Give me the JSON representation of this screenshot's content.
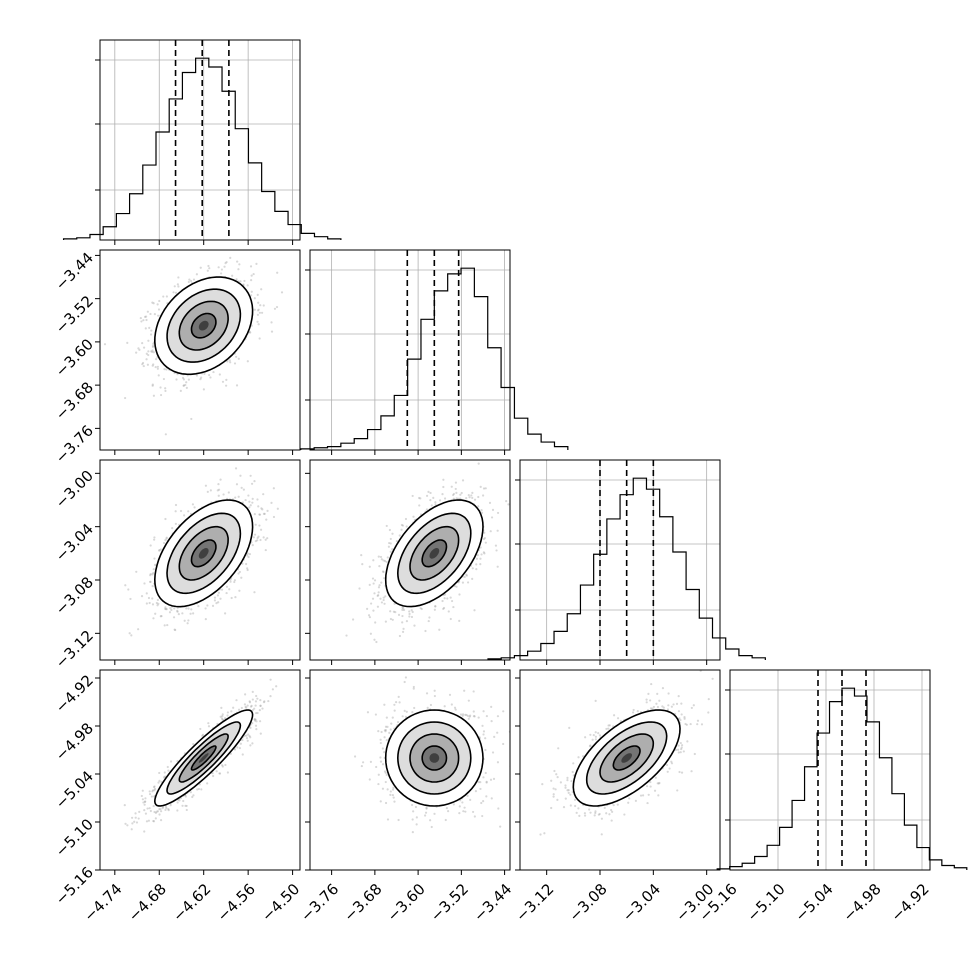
{
  "chart_data": {
    "type": "corner",
    "grid": true,
    "params": [
      {
        "range": [
          -4.76,
          -4.49
        ],
        "ticks": [
          "−4.74",
          "−4.68",
          "−4.62",
          "−4.56",
          "−4.50"
        ],
        "tick_values": [
          -4.74,
          -4.68,
          -4.62,
          "-4.56",
          -4.5
        ],
        "quantiles": [
          -4.658,
          -4.622,
          -4.586
        ]
      },
      {
        "range": [
          -3.8,
          -3.43
        ],
        "ticks": [
          "−3.76",
          "−3.68",
          "−3.60",
          "−3.52",
          "−3.44"
        ],
        "tick_values": [
          -3.76,
          -3.68,
          -3.6,
          -3.52,
          -3.44
        ],
        "quantiles": [
          -3.62,
          -3.57,
          -3.525
        ]
      },
      {
        "range": [
          -3.14,
          -2.99
        ],
        "ticks": [
          "−3.12",
          "−3.08",
          "−3.04",
          "−3.00"
        ],
        "tick_values": [
          -3.12,
          -3.08,
          -3.04,
          -3.0
        ],
        "quantiles": [
          -3.08,
          -3.06,
          -3.04
        ]
      },
      {
        "range": [
          -5.16,
          -4.91
        ],
        "ticks": [
          "−5.16",
          "−5.10",
          "−5.04",
          "−4.98",
          "−4.92"
        ],
        "tick_values": [
          -5.16,
          -5.1,
          -5.04,
          -4.98,
          -4.92
        ],
        "quantiles": [
          -5.05,
          -5.02,
          -4.99
        ]
      }
    ],
    "histograms": [
      [
        1,
        2,
        5,
        12,
        24,
        42,
        68,
        98,
        128,
        152,
        165,
        157,
        135,
        101,
        70,
        44,
        26,
        14,
        6,
        3,
        1
      ],
      [
        1,
        2,
        3,
        6,
        10,
        18,
        30,
        48,
        80,
        115,
        140,
        155,
        160,
        135,
        90,
        55,
        28,
        14,
        7,
        3
      ],
      [
        1,
        2,
        4,
        8,
        15,
        26,
        42,
        68,
        96,
        128,
        150,
        165,
        155,
        130,
        98,
        64,
        38,
        20,
        10,
        4,
        2
      ],
      [
        1,
        3,
        6,
        12,
        22,
        38,
        62,
        92,
        122,
        150,
        162,
        155,
        132,
        100,
        68,
        40,
        20,
        9,
        4,
        2
      ]
    ],
    "pairs": [
      {
        "x": 0,
        "y": 1,
        "mean": [
          -4.62,
          -3.57
        ],
        "sd": [
          0.033,
          0.045
        ],
        "corr": 0.3
      },
      {
        "x": 0,
        "y": 2,
        "mean": [
          -4.62,
          -3.06
        ],
        "sd": [
          0.033,
          0.02
        ],
        "corr": 0.5
      },
      {
        "x": 1,
        "y": 2,
        "mean": [
          -3.57,
          -3.06
        ],
        "sd": [
          0.045,
          0.02
        ],
        "corr": 0.5
      },
      {
        "x": 0,
        "y": 3,
        "mean": [
          -4.62,
          -5.02
        ],
        "sd": [
          0.033,
          0.03
        ],
        "corr": 0.9
      },
      {
        "x": 1,
        "y": 3,
        "mean": [
          -3.57,
          -5.02
        ],
        "sd": [
          0.045,
          0.03
        ],
        "corr": 0.0
      },
      {
        "x": 2,
        "y": 3,
        "mean": [
          -3.06,
          -5.02
        ],
        "sd": [
          0.02,
          0.03
        ],
        "corr": 0.6
      }
    ],
    "contour_levels_sigma": [
      0.5,
      1.0,
      1.5,
      2.0
    ]
  }
}
